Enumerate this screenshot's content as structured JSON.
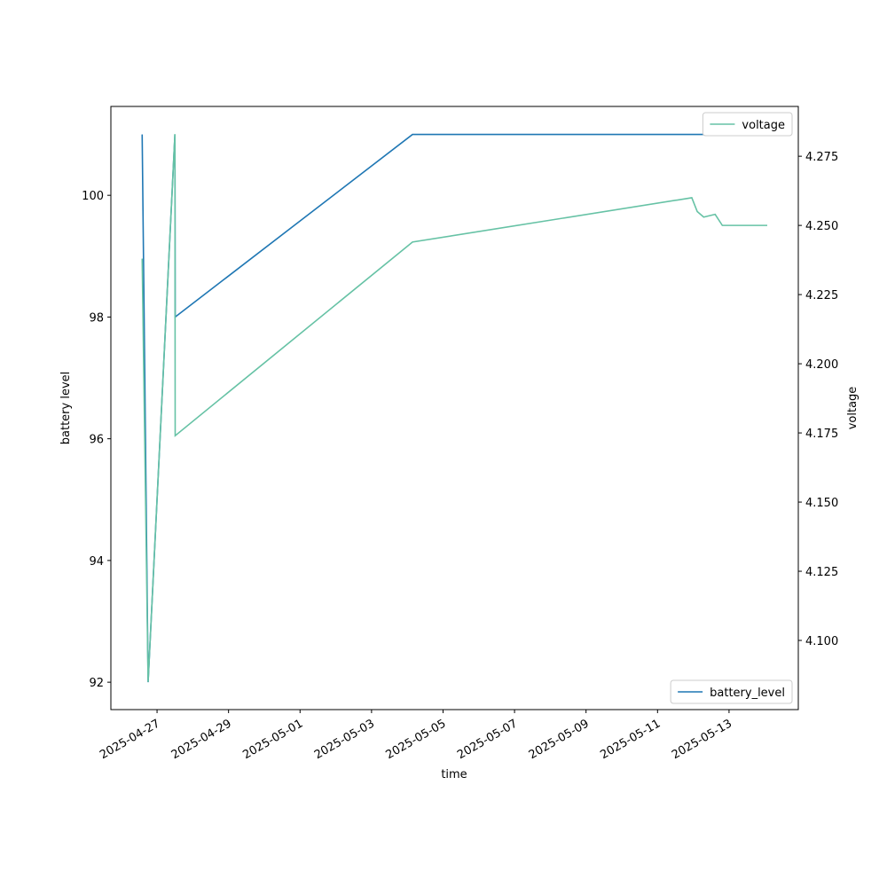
{
  "chart_data": {
    "type": "line",
    "xlabel": "time",
    "ylabel": "battery level",
    "y2label": "voltage",
    "xlim": [
      "2025-04-25T17:00",
      "2025-05-14T22:30"
    ],
    "xticks": [
      "2025-04-27",
      "2025-04-29",
      "2025-05-01",
      "2025-05-03",
      "2025-05-05",
      "2025-05-07",
      "2025-05-09",
      "2025-05-11",
      "2025-05-13"
    ],
    "ylim": [
      91.55,
      101.46
    ],
    "yticks": [
      92,
      94,
      96,
      98,
      100
    ],
    "y2lim": [
      4.075,
      4.293
    ],
    "y2ticks": [
      {
        "value": 4.1,
        "label": "4.100"
      },
      4.125,
      {
        "value": 4.15,
        "label": "4.150"
      },
      4.175,
      {
        "value": 4.2,
        "label": "4.200"
      },
      4.225,
      {
        "value": 4.25,
        "label": "4.250"
      },
      4.275
    ],
    "series": [
      {
        "name": "battery_level",
        "color": "#1f77b4",
        "legend": "lower right",
        "x": [
          "2025-04-26T14:00",
          "2025-04-26T18:00",
          "2025-04-27T12:00",
          "2025-04-27T12:10",
          "2025-05-04T03:30",
          "2025-05-14T01:40"
        ],
        "values": [
          101,
          92,
          101,
          98,
          101,
          101
        ]
      },
      {
        "name": "voltage",
        "color": "#66c2a5",
        "axis": "y2",
        "legend": "upper right",
        "x": [
          "2025-04-26T14:00",
          "2025-04-26T18:00",
          "2025-04-27T12:00",
          "2025-04-27T12:10",
          "2025-05-04T03:30",
          "2025-05-11T23:00",
          "2025-05-12T02:40",
          "2025-05-12T07:00",
          "2025-05-12T14:40",
          "2025-05-12T19:30",
          "2025-05-14T01:40"
        ],
        "values": [
          4.238,
          4.085,
          4.283,
          4.174,
          4.244,
          4.26,
          4.255,
          4.253,
          4.254,
          4.25,
          4.25
        ]
      }
    ]
  }
}
